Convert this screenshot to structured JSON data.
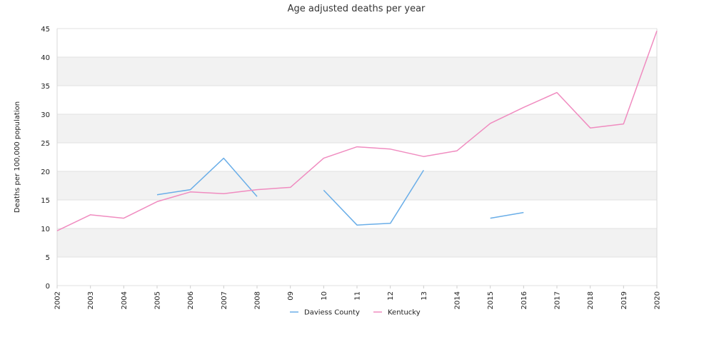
{
  "chart_data": {
    "type": "line",
    "title": "Age adjusted deaths per year",
    "ylabel": "Deaths per 100,000 population",
    "xlabel": "",
    "ylim": [
      0,
      45
    ],
    "yticks": [
      "0",
      "5",
      "10",
      "15",
      "20",
      "25",
      "30",
      "35",
      "40",
      "45"
    ],
    "categories": [
      "2002",
      "2003",
      "2004",
      "2005",
      "2006",
      "2007",
      "2008",
      "09",
      "10",
      "11",
      "12",
      "13",
      "2014",
      "2015",
      "2016",
      "2017",
      "2018",
      "2019",
      "2020"
    ],
    "grid": "alternating horizontal bands",
    "legend_position": "bottom-center",
    "series": [
      {
        "name": "Daviess County",
        "color": "#6aaee8",
        "values": [
          null,
          null,
          null,
          15.9,
          16.8,
          22.3,
          15.6,
          null,
          16.7,
          10.6,
          10.9,
          20.2,
          null,
          11.8,
          12.8,
          null,
          null,
          null,
          null
        ]
      },
      {
        "name": "Kentucky",
        "color": "#f08cc0",
        "values": [
          9.6,
          12.4,
          11.8,
          14.7,
          16.4,
          16.1,
          16.8,
          17.2,
          22.3,
          24.3,
          23.9,
          22.6,
          23.6,
          28.4,
          31.2,
          33.8,
          27.6,
          28.3,
          44.6
        ]
      }
    ]
  }
}
